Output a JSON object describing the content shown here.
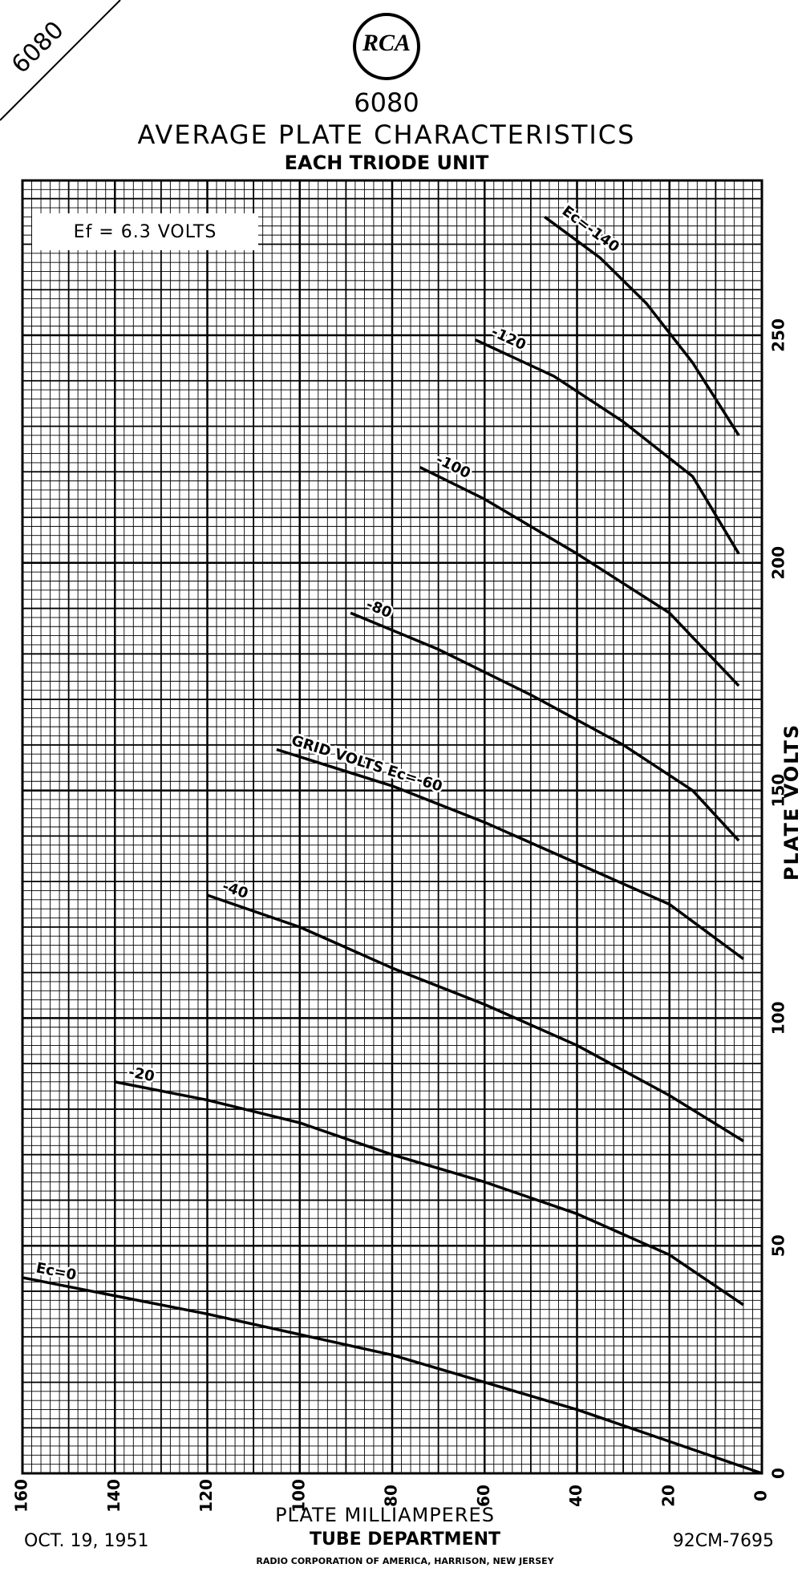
{
  "corner_label": "6080",
  "logo": "RCA",
  "chart_data": {
    "type": "line",
    "title": "6080",
    "subtitle": "AVERAGE PLATE CHARACTERISTICS",
    "subtitle2": "EACH TRIODE UNIT",
    "annotation": "Ef = 6.3 VOLTS",
    "x_label": "PLATE MILLIAMPERES",
    "y_label": "PLATE VOLTS",
    "xlim": [
      160,
      0
    ],
    "ylim": [
      0,
      284
    ],
    "xticks": [
      160,
      140,
      120,
      100,
      80,
      60,
      40,
      20,
      0
    ],
    "yticks": [
      0,
      50,
      100,
      150,
      200,
      250
    ],
    "grid": true,
    "series": [
      {
        "name": "Ec=0",
        "color": "#000000",
        "x": [
          160,
          120,
          80,
          40,
          20,
          0
        ],
        "values": [
          43,
          35,
          26,
          14,
          7,
          0
        ]
      },
      {
        "name": "-20",
        "color": "#000000",
        "x": [
          140,
          120,
          100,
          80,
          60,
          40,
          20,
          4
        ],
        "values": [
          86,
          82,
          77,
          70,
          64,
          57,
          48,
          37
        ]
      },
      {
        "name": "-40",
        "color": "#000000",
        "x": [
          120,
          100,
          80,
          60,
          40,
          20,
          4
        ],
        "values": [
          127,
          120,
          111,
          103,
          94,
          83,
          73
        ]
      },
      {
        "name": "GRID VOLTS Ec=-60",
        "color": "#000000",
        "x": [
          105,
          80,
          60,
          40,
          20,
          4
        ],
        "values": [
          159,
          151,
          143,
          134,
          125,
          113
        ]
      },
      {
        "name": "-80",
        "color": "#000000",
        "x": [
          89,
          70,
          50,
          30,
          15,
          5
        ],
        "values": [
          189,
          181,
          171,
          160,
          150,
          139
        ]
      },
      {
        "name": "-100",
        "color": "#000000",
        "x": [
          74,
          60,
          40,
          20,
          5
        ],
        "values": [
          221,
          214,
          202,
          189,
          173
        ]
      },
      {
        "name": "-120",
        "color": "#000000",
        "x": [
          62,
          45,
          30,
          15,
          5
        ],
        "values": [
          249,
          241,
          231,
          219,
          202
        ]
      },
      {
        "name": "Ec=-140",
        "color": "#000000",
        "x": [
          47,
          35,
          25,
          15,
          5
        ],
        "values": [
          276,
          267,
          257,
          244,
          228
        ]
      }
    ]
  },
  "footer": {
    "date": "OCT. 19, 1951",
    "department": "TUBE DEPARTMENT",
    "company": "RADIO CORPORATION OF AMERICA, HARRISON, NEW JERSEY",
    "code": "92CM-7695"
  }
}
